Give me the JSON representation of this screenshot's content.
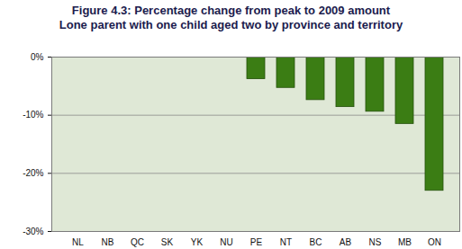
{
  "chart_data": {
    "type": "bar",
    "title": "Figure 4.3: Percentage change from peak to 2009 amount",
    "subtitle": "Lone parent with one child aged two by province and territory",
    "categories": [
      "NL",
      "NB",
      "QC",
      "SK",
      "YK",
      "NU",
      "PE",
      "NT",
      "BC",
      "AB",
      "NS",
      "MB",
      "ON"
    ],
    "values": [
      0,
      0,
      0,
      0,
      0,
      0,
      -3.8,
      -5.3,
      -7.4,
      -8.6,
      -9.4,
      -11.5,
      -23
    ],
    "color": "#3b7d14",
    "ylim": [
      -30,
      0
    ],
    "yticks": [
      {
        "value": 0,
        "label": "0%"
      },
      {
        "value": -10,
        "label": "-10%"
      },
      {
        "value": -20,
        "label": "-20%"
      },
      {
        "value": -30,
        "label": "-30%"
      }
    ],
    "grid": true
  }
}
